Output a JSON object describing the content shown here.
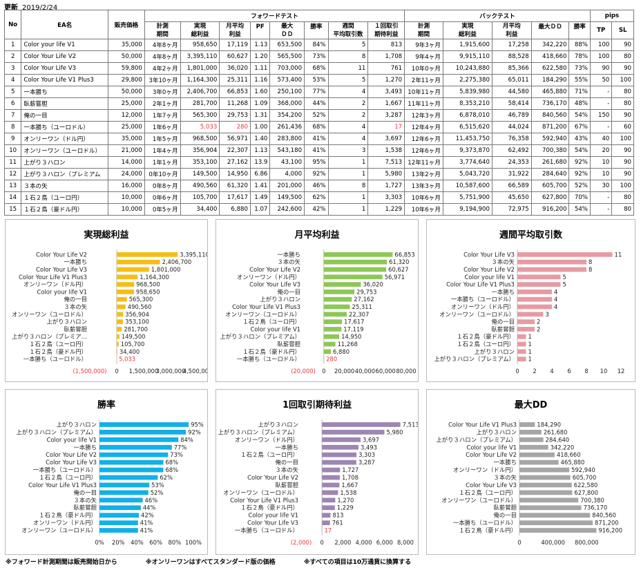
{
  "update": {
    "label": "更新",
    "date": "2019/2/24"
  },
  "table": {
    "group_headers": {
      "forward": "フォワードテスト",
      "back": "バックテスト",
      "pips": "pips"
    },
    "col_no": "No",
    "col_name": "EA名",
    "col_price": "販売価格",
    "fw_headers": [
      {
        "a": "計測",
        "b": "期間"
      },
      {
        "a": "実現",
        "b": "総利益"
      },
      {
        "a": "月平均",
        "b": "利益"
      },
      {
        "a": "PF",
        "b": ""
      },
      {
        "a": "最大",
        "b": "ＤＤ"
      },
      {
        "a": "勝率",
        "b": ""
      },
      {
        "a": "週間",
        "b": "平均取引数"
      },
      {
        "a": "１回取引",
        "b": "期待利益"
      }
    ],
    "bt_headers": [
      {
        "a": "計測",
        "b": "期間"
      },
      {
        "a": "実現",
        "b": "総利益"
      },
      {
        "a": "月平均",
        "b": "利益"
      },
      {
        "a": "最大ＤＤ",
        "b": ""
      },
      {
        "a": "勝率",
        "b": ""
      }
    ],
    "pips_headers": [
      "TP",
      "SL"
    ],
    "rows": [
      [
        "1",
        "Color your life V1",
        "35,000",
        "4年8ヶ月",
        "958,650",
        "17,119",
        "1.13",
        "653,500",
        "84%",
        "5",
        "813",
        "9年3ヶ月",
        "1,915,600",
        "17,258",
        "342,220",
        "88%",
        "100",
        "90"
      ],
      [
        "2",
        "Color Your Life V2",
        "50,000",
        "4年8ヶ月",
        "3,395,110",
        "60,627",
        "1.20",
        "565,500",
        "73%",
        "8",
        "1,708",
        "9年4ヶ月",
        "9,915,110",
        "88,528",
        "418,660",
        "78%",
        "100",
        "80"
      ],
      [
        "3",
        "Color Your Life V3",
        "59,800",
        "4年2ヶ月",
        "1,801,000",
        "36,020",
        "1.11",
        "703,000",
        "68%",
        "11",
        "761",
        "10年0ヶ月",
        "10,243,880",
        "85,366",
        "622,580",
        "73%",
        "90",
        "90"
      ],
      [
        "4",
        "Color Your Life V1 Plus3",
        "29,800",
        "3年10ヶ月",
        "1,164,300",
        "25,311",
        "1.16",
        "573,400",
        "53%",
        "5",
        "1,270",
        "2年11ヶ月",
        "2,275,380",
        "65,011",
        "184,290",
        "55%",
        "50",
        "100"
      ],
      [
        "5",
        "一本勝ち",
        "50,000",
        "3年0ヶ月",
        "2,406,700",
        "66,853",
        "1.60",
        "250,100",
        "77%",
        "4",
        "3,493",
        "10年11ヶ月",
        "5,839,980",
        "44,580",
        "465,880",
        "71%",
        "-",
        "80"
      ],
      [
        "6",
        "臥薪嘗胆",
        "25,000",
        "2年1ヶ月",
        "281,700",
        "11,268",
        "1.09",
        "368,000",
        "44%",
        "2",
        "1,667",
        "11年11ヶ月",
        "8,353,210",
        "58,414",
        "736,170",
        "48%",
        "-",
        "80"
      ],
      [
        "7",
        "俺の一目",
        "12,000",
        "1年7ヶ月",
        "565,300",
        "29,753",
        "1.31",
        "354,200",
        "52%",
        "2",
        "3,287",
        "12年3ヶ月",
        "6,878,010",
        "46,789",
        "840,560",
        "54%",
        "150",
        "90"
      ],
      [
        "8",
        "一本勝ち（ユーロドル）",
        "25,000",
        "1年6ヶ月",
        "5,033",
        "280",
        "1.00",
        "261,436",
        "68%",
        "4",
        "17",
        "12年4ヶ月",
        "6,515,620",
        "44,024",
        "871,200",
        "67%",
        "-",
        "60"
      ],
      [
        "9",
        "オンリーワン（ドル円）",
        "35,000",
        "1年5ヶ月",
        "968,500",
        "56,971",
        "1.40",
        "283,800",
        "41%",
        "4",
        "3,697",
        "12年6ヶ月",
        "11,453,750",
        "76,358",
        "592,940",
        "43%",
        "40",
        "100"
      ],
      [
        "10",
        "オンリーワン（ユーロドル）",
        "21,000",
        "1年4ヶ月",
        "356,904",
        "22,307",
        "1.13",
        "543,180",
        "41%",
        "3",
        "1,538",
        "12年6ヶ月",
        "9,373,870",
        "62,492",
        "700,380",
        "54%",
        "20",
        "90"
      ],
      [
        "11",
        "上がり３ハロン",
        "14,000",
        "1年1ヶ月",
        "353,100",
        "27,162",
        "13.9",
        "43,100",
        "95%",
        "1",
        "7,513",
        "12年11ヶ月",
        "3,774,640",
        "24,353",
        "261,680",
        "92%",
        "10",
        "90"
      ],
      [
        "12",
        "上がり３ハロン（プレミアム",
        "24,000",
        "0年10ヶ月",
        "149,500",
        "14,950",
        "6.86",
        "4,000",
        "92%",
        "1",
        "5,980",
        "13年2ヶ月",
        "5,043,720",
        "31,922",
        "284,640",
        "92%",
        "10",
        "90"
      ],
      [
        "13",
        "３本の矢",
        "16,000",
        "0年8ヶ月",
        "490,560",
        "61,320",
        "1.41",
        "201,000",
        "46%",
        "8",
        "1,727",
        "13年3ヶ月",
        "10,587,600",
        "66,589",
        "605,700",
        "52%",
        "30",
        "100"
      ],
      [
        "14",
        "１石２鳥（ユーロ円）",
        "10,000",
        "0年6ヶ月",
        "105,700",
        "17,617",
        "1.49",
        "149,500",
        "62%",
        "1",
        "3,303",
        "10年6ヶ月",
        "5,751,900",
        "45,650",
        "627,800",
        "70%",
        "-",
        "80"
      ],
      [
        "15",
        "１石２鳥（豪ドル円）",
        "10,000",
        "0年5ヶ月",
        "34,400",
        "6,880",
        "1.07",
        "242,600",
        "42%",
        "1",
        "1,229",
        "10年6ヶ月",
        "9,194,900",
        "72,975",
        "916,200",
        "54%",
        "-",
        "80"
      ]
    ]
  },
  "chart_data": [
    {
      "type": "bar",
      "orientation": "horizontal",
      "title": "実現総利益",
      "color": "#f5be17",
      "categories": [
        "Color Your Life V2",
        "一本勝ち",
        "Color Your Life V3",
        "Color Your Life V1 Plus3",
        "オンリーワン（ドル円）",
        "Color your life V1",
        "俺の一目",
        "３本の矢",
        "オンリーワン（ユーロドル）",
        "上がり３ハロン",
        "臥薪嘗胆",
        "上がり３ハロン（プレミア…",
        "１石２鳥（ユーロ円）",
        "１石２鳥（豪ドル円）",
        "一本勝ち（ユーロドル）"
      ],
      "values": [
        3395110,
        2406700,
        1801000,
        1164300,
        968500,
        958650,
        565300,
        490560,
        356904,
        353100,
        281700,
        149500,
        105700,
        34400,
        5033
      ],
      "labels": [
        "3,395,110",
        "2,406,700",
        "1,801,000",
        "1,164,300",
        "968,500",
        "958,650",
        "565,300",
        "490,560",
        "356,904",
        "353,100",
        "281,700",
        "149,500",
        "105,700",
        "34,400",
        "5,033"
      ],
      "xlim": [
        -1500000,
        4500000
      ],
      "xticks": [
        -1500000,
        0,
        1500000,
        3000000,
        4500000
      ],
      "xtick_labels": [
        "(1,500,000)",
        "0",
        "1,500,000",
        "3,000,000",
        "4,500,000"
      ],
      "red_last": true
    },
    {
      "type": "bar",
      "orientation": "horizontal",
      "title": "月平均利益",
      "color": "#8dc756",
      "categories": [
        "一本勝ち",
        "３本の矢",
        "Color Your Life V2",
        "オンリーワン（ドル円）",
        "Color Your Life V3",
        "俺の一目",
        "上がり３ハロン",
        "Color Your Life V1 Plus3",
        "オンリーワン（ユーロドル）",
        "１石２鳥（ユーロ円）",
        "Color your life V1",
        "上がり３ハロン（プレミアム）",
        "臥薪嘗胆",
        "１石２鳥（豪ドル円）",
        "一本勝ち（ユーロドル）"
      ],
      "values": [
        66853,
        61320,
        60627,
        56971,
        36020,
        29753,
        27162,
        25311,
        22307,
        17617,
        17119,
        14950,
        11268,
        6880,
        280
      ],
      "labels": [
        "66,853",
        "61,320",
        "60,627",
        "56,971",
        "36,020",
        "29,753",
        "27,162",
        "25,311",
        "22,307",
        "17,617",
        "17,119",
        "14,950",
        "11,268",
        "6,880",
        "280"
      ],
      "xlim": [
        -20000,
        80000
      ],
      "xticks": [
        -20000,
        0,
        20000,
        40000,
        60000,
        80000
      ],
      "xtick_labels": [
        "(20,000)",
        "0",
        "20,000",
        "40,000",
        "60,000",
        "80,000"
      ],
      "red_last": true
    },
    {
      "type": "bar",
      "orientation": "horizontal",
      "title": "週間平均取引数",
      "color": "#e79aa2",
      "categories": [
        "Color Your Life V3",
        "３本の矢",
        "Color Your Life V2",
        "Color your life V1",
        "Color Your Life V1 Plus3",
        "一本勝ち",
        "一本勝ち（ユーロドル）",
        "オンリーワン（ドル円）",
        "オンリーワン（ユーロドル）",
        "俺の一目",
        "臥薪嘗胆",
        "１石２鳥（豪ドル円）",
        "１石２鳥（ユーロ円）",
        "上がり３ハロン",
        "上がり３ハロン（プレミアム）"
      ],
      "values": [
        11,
        8,
        8,
        5,
        5,
        4,
        4,
        4,
        3,
        2,
        2,
        1,
        1,
        1,
        1
      ],
      "labels": [
        "11",
        "8",
        "8",
        "5",
        "5",
        "4",
        "4",
        "4",
        "3",
        "2",
        "2",
        "1",
        "1",
        "1",
        "1"
      ],
      "xlim": [
        0,
        12
      ],
      "xticks": [
        0,
        2,
        4,
        6,
        8,
        10,
        12
      ],
      "xtick_labels": [
        "0",
        "2",
        "4",
        "6",
        "8",
        "10",
        "12"
      ],
      "red_last": false
    },
    {
      "type": "bar",
      "orientation": "horizontal",
      "title": "勝率",
      "color": "#12b0e8",
      "categories": [
        "上がり３ハロン",
        "上がり３ハロン（プレミアム）",
        "Color your life V1",
        "一本勝ち",
        "Color Your Life V2",
        "Color Your Life V3",
        "一本勝ち（ユーロドル）",
        "１石２鳥（ユーロ円）",
        "Color Your Life V1 Plus3",
        "俺の一目",
        "３本の矢",
        "臥薪嘗胆",
        "１石２鳥（豪ドル円）",
        "オンリーワン（ドル円）",
        "オンリーワン（ユーロドル）"
      ],
      "values": [
        95,
        92,
        84,
        77,
        73,
        68,
        68,
        62,
        53,
        52,
        46,
        44,
        42,
        41,
        41
      ],
      "labels": [
        "95%",
        "92%",
        "84%",
        "77%",
        "73%",
        "68%",
        "68%",
        "62%",
        "53%",
        "52%",
        "46%",
        "44%",
        "42%",
        "41%",
        "41%"
      ],
      "xlim": [
        0,
        100
      ],
      "xticks": [
        0,
        20,
        40,
        60,
        80,
        100
      ],
      "xtick_labels": [
        "0%",
        "20%",
        "40%",
        "60%",
        "80%",
        "100%"
      ],
      "red_last": false
    },
    {
      "type": "bar",
      "orientation": "horizontal",
      "title": "1回取引期待利益",
      "color": "#9e86b3",
      "categories": [
        "上がり３ハロン",
        "上がり３ハロン（プレミアム）",
        "オンリーワン（ドル円）",
        "一本勝ち",
        "１石２鳥（ユーロ円）",
        "俺の一目",
        "３本の矢",
        "Color Your Life V2",
        "臥薪嘗胆",
        "オンリーワン（ユーロドル）",
        "Color Your Life V1 Plus3",
        "１石２鳥（豪ドル円）",
        "Color your life V1",
        "Color Your Life V3",
        "一本勝ち（ユーロドル）"
      ],
      "values": [
        7513,
        5980,
        3697,
        3493,
        3303,
        3287,
        1727,
        1708,
        1667,
        1538,
        1270,
        1229,
        813,
        761,
        17
      ],
      "labels": [
        "7,513",
        "5,980",
        "3,697",
        "3,493",
        "3,303",
        "3,287",
        "1,727",
        "1,708",
        "1,667",
        "1,538",
        "1,270",
        "1,229",
        "813",
        "761",
        "17"
      ],
      "xlim": [
        -2000,
        8000
      ],
      "xticks": [
        -2000,
        0,
        2000,
        4000,
        6000,
        8000
      ],
      "xtick_labels": [
        "(2,000)",
        "0",
        "2,000",
        "4,000",
        "6,000",
        "8,000"
      ],
      "red_last": true
    },
    {
      "type": "bar",
      "orientation": "horizontal",
      "title": "最大DD",
      "color": "#a6a6a6",
      "categories": [
        "Color Your Life V1 Plus3",
        "上がり３ハロン",
        "上がり３ハロン（プレミアム）",
        "Color your life V1",
        "Color Your Life V2",
        "一本勝ち",
        "オンリーワン（ドル円）",
        "３本の矢",
        "Color Your Life V3",
        "１石２鳥（ユーロ円）",
        "オンリーワン（ユーロドル）",
        "臥薪嘗胆",
        "俺の一目",
        "一本勝ち（ユーロドル）",
        "１石２鳥（豪ドル円）"
      ],
      "values": [
        184290,
        261680,
        284640,
        342220,
        418660,
        465880,
        592940,
        605700,
        622580,
        627800,
        700380,
        736170,
        840560,
        871200,
        916200
      ],
      "labels": [
        "184,290",
        "261,680",
        "284,640",
        "342,220",
        "418,660",
        "465,880",
        "592,940",
        "605,700",
        "622,580",
        "627,800",
        "700,380",
        "736,170",
        "840,560",
        "871,200",
        "916,200"
      ],
      "xlim": [
        0,
        1200000
      ],
      "xticks": [
        0,
        400000,
        800000
      ],
      "xtick_labels": [
        "0",
        "400,000",
        "800,000"
      ],
      "red_last": false
    }
  ],
  "footnotes": [
    "※フォワード計測期間は販売開始日から",
    "※オンリーワンはすべてスタンダード版の価格",
    "※すべての項目は10万通貨に換算する"
  ]
}
